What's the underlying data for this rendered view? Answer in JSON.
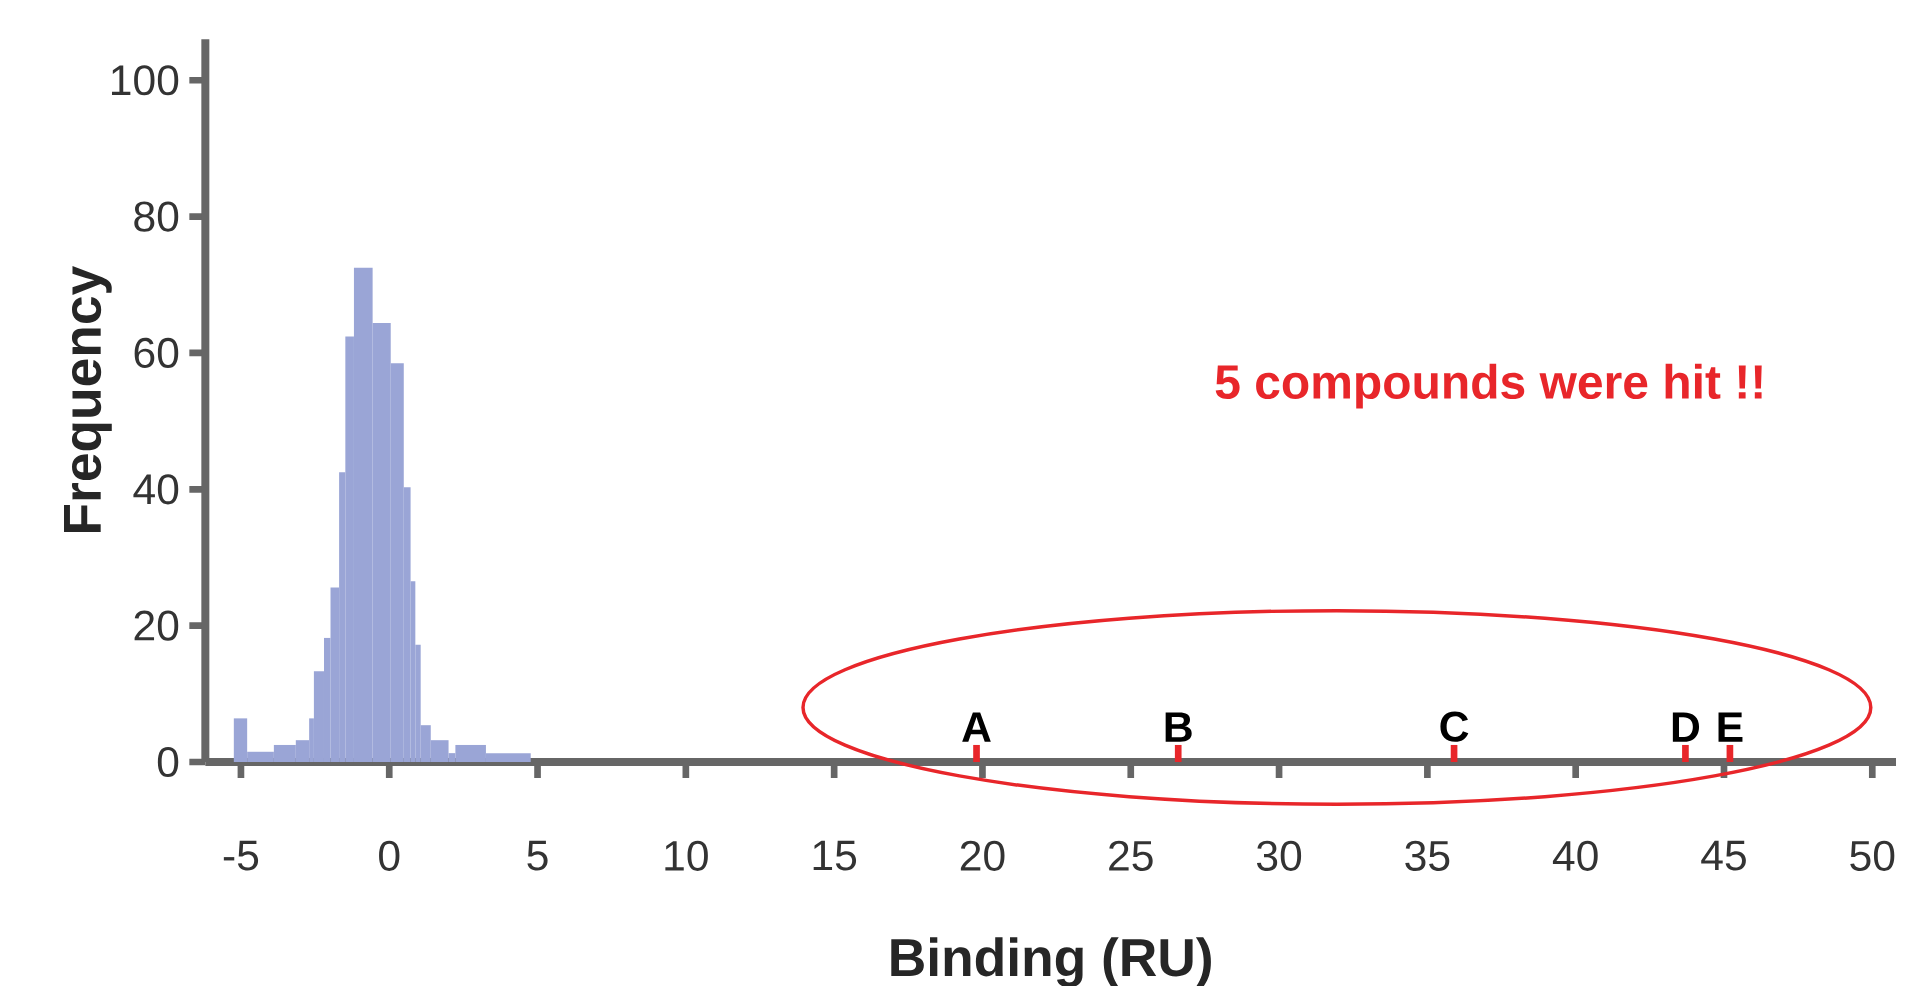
{
  "chart_data": {
    "type": "histogram",
    "xlabel": "Binding  (RU)",
    "ylabel": "Frequency",
    "bins": [
      -5.24,
      -4.79,
      -3.89,
      -3.15,
      -2.7,
      -2.54,
      -2.2,
      -1.98,
      -1.69,
      -1.48,
      -1.19,
      -0.56,
      0.05,
      0.49,
      0.72,
      0.88,
      1.06,
      1.4,
      2.0,
      2.23,
      3.26,
      4.77
    ],
    "values": [
      6.4,
      1.5,
      2.5,
      3.2,
      6.4,
      13.3,
      18.2,
      25.6,
      42.5,
      62.4,
      72.5,
      64.4,
      58.5,
      40.3,
      26.5,
      17.2,
      5.4,
      3.2,
      1.3,
      2.5,
      1.3
    ],
    "color": "#9aa5d6",
    "series": [
      {
        "type": "bar",
        "color": "#e8262a",
        "x": [
          19.8,
          26.6,
          35.9,
          43.7,
          45.2
        ],
        "values": [
          2.5,
          2.5,
          2.5,
          2.5,
          2.5
        ]
      }
    ],
    "annotations": [
      "5 compounds were hit !!",
      {
        "text": "A",
        "x": 19.8,
        "y": 2.5
      },
      {
        "text": "B",
        "x": 26.6,
        "y": 2.5
      },
      {
        "text": "C",
        "x": 35.9,
        "y": 2.5
      },
      {
        "text": "D",
        "x": 43.7,
        "y": 2.5
      },
      {
        "text": "E",
        "x": 45.2,
        "y": 2.5
      }
    ],
    "xlim": [
      -6.2,
      50.8
    ],
    "ylim": [
      0,
      106
    ],
    "xticks": [
      -5,
      0,
      5,
      10,
      15,
      20,
      25,
      30,
      35,
      40,
      45,
      50
    ],
    "yticks": [
      0,
      20,
      40,
      60,
      80,
      100
    ]
  }
}
